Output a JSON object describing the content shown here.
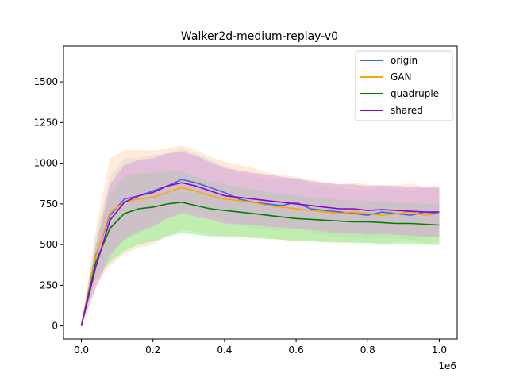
{
  "chart_data": {
    "type": "line",
    "title": "Walker2d-medium-replay-v0",
    "xlabel": "",
    "ylabel": "",
    "x_offset_label": "1e6",
    "xlim": [
      -0.05,
      1.05
    ],
    "ylim": [
      -80,
      1720
    ],
    "x_ticks": [
      0.0,
      0.2,
      0.4,
      0.6,
      0.8,
      1.0
    ],
    "x_tick_labels": [
      "0.0",
      "0.2",
      "0.4",
      "0.6",
      "0.8",
      "1.0"
    ],
    "y_ticks": [
      0,
      250,
      500,
      750,
      1000,
      1250,
      1500
    ],
    "y_tick_labels": [
      "0",
      "250",
      "500",
      "750",
      "1000",
      "1250",
      "1500"
    ],
    "grid": false,
    "legend_position": "top-right",
    "x": [
      0.0,
      0.04,
      0.08,
      0.12,
      0.16,
      0.2,
      0.24,
      0.28,
      0.32,
      0.36,
      0.4,
      0.44,
      0.48,
      0.52,
      0.56,
      0.6,
      0.64,
      0.68,
      0.72,
      0.76,
      0.8,
      0.84,
      0.88,
      0.92,
      0.96,
      1.0
    ],
    "series": [
      {
        "name": "origin",
        "color": "#4169e1",
        "band_color": "#add8e6",
        "values": [
          0,
          430,
          680,
          780,
          800,
          830,
          860,
          900,
          880,
          850,
          820,
          780,
          760,
          750,
          740,
          760,
          720,
          710,
          700,
          690,
          680,
          700,
          690,
          680,
          700,
          690
        ],
        "spread": [
          0,
          120,
          230,
          250,
          230,
          220,
          200,
          190,
          180,
          170,
          165,
          160,
          160,
          155,
          155,
          150,
          150,
          150,
          150,
          150,
          150,
          150,
          150,
          150,
          150,
          150
        ]
      },
      {
        "name": "GAN",
        "color": "#ffa500",
        "band_color": "#ffdab9",
        "values": [
          0,
          420,
          700,
          760,
          780,
          790,
          820,
          850,
          830,
          800,
          780,
          770,
          760,
          740,
          730,
          720,
          710,
          700,
          690,
          700,
          690,
          680,
          690,
          700,
          680,
          690
        ],
        "spread": [
          0,
          170,
          330,
          320,
          300,
          290,
          270,
          260,
          250,
          240,
          230,
          220,
          210,
          200,
          200,
          195,
          190,
          185,
          180,
          180,
          180,
          180,
          175,
          175,
          175,
          175
        ]
      },
      {
        "name": "quadruple",
        "color": "#008000",
        "band_color": "#90ee90",
        "values": [
          0,
          390,
          600,
          690,
          720,
          730,
          750,
          760,
          740,
          720,
          710,
          700,
          690,
          680,
          670,
          660,
          655,
          650,
          645,
          640,
          640,
          635,
          630,
          630,
          625,
          620
        ],
        "spread": [
          0,
          100,
          210,
          230,
          220,
          210,
          200,
          190,
          180,
          170,
          160,
          155,
          150,
          145,
          140,
          140,
          135,
          135,
          130,
          130,
          130,
          130,
          125,
          125,
          125,
          125
        ]
      },
      {
        "name": "shared",
        "color": "#9400d3",
        "band_color": "#dda0dd",
        "values": [
          0,
          360,
          650,
          760,
          800,
          820,
          860,
          880,
          860,
          830,
          800,
          790,
          780,
          770,
          760,
          750,
          740,
          730,
          720,
          720,
          710,
          715,
          710,
          705,
          700,
          700
        ],
        "spread": [
          0,
          130,
          220,
          230,
          220,
          210,
          200,
          190,
          185,
          175,
          170,
          165,
          160,
          160,
          155,
          155,
          150,
          150,
          150,
          150,
          150,
          150,
          150,
          150,
          150,
          150
        ]
      }
    ]
  }
}
